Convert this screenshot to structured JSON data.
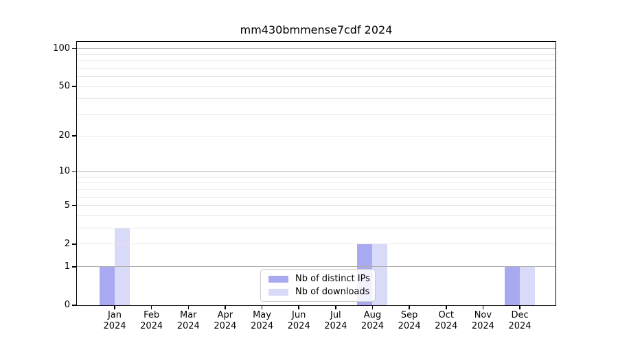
{
  "figure": {
    "background": "#ffffff"
  },
  "chart_data": {
    "type": "bar",
    "title": "mm430bmmense7cdf 2024",
    "scale": "log1p",
    "categories": [
      "Jan 2024",
      "Feb 2024",
      "Mar 2024",
      "Apr 2024",
      "May 2024",
      "Jun 2024",
      "Jul 2024",
      "Aug 2024",
      "Sep 2024",
      "Oct 2024",
      "Nov 2024",
      "Dec 2024"
    ],
    "series": [
      {
        "name": "Nb of distinct IPs",
        "color": "#a9a9f2",
        "values": [
          1,
          0,
          0,
          0,
          0,
          0,
          0,
          2,
          0,
          0,
          0,
          1
        ]
      },
      {
        "name": "Nb of downloads",
        "color": "#d9d9f8",
        "values": [
          3,
          0,
          0,
          0,
          0,
          0,
          0,
          2,
          0,
          0,
          0,
          1
        ]
      }
    ],
    "xlabel": "",
    "ylabel": "",
    "ylim": [
      0,
      113
    ],
    "y_axis": {
      "tick_values": [
        0,
        1,
        2,
        5,
        10,
        20,
        50,
        100
      ],
      "tick_labels": [
        "0",
        "1",
        "2",
        "5",
        "10",
        "20",
        "50",
        "100"
      ]
    },
    "grid": {
      "on": true,
      "major_values": [
        1,
        10,
        100
      ],
      "minor_values": [
        2,
        3,
        4,
        5,
        6,
        7,
        8,
        9,
        20,
        30,
        40,
        50,
        60,
        70,
        80,
        90
      ],
      "major_color": "#b0b0b0",
      "minor_color": "#e9e9e9"
    },
    "legend": {
      "position": "lower-center"
    }
  }
}
